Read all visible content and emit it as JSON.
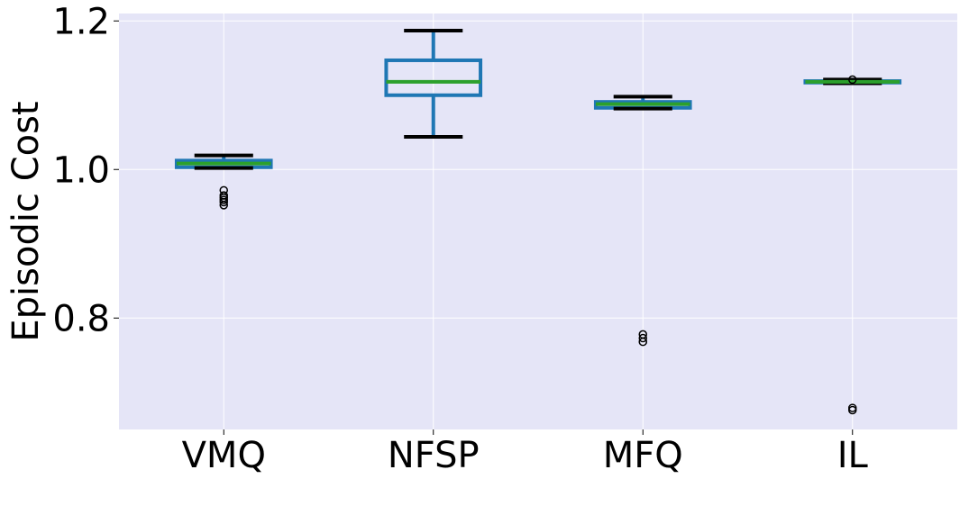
{
  "chart_data": {
    "type": "box",
    "title": "",
    "xlabel": "",
    "ylabel": "Episodic Cost",
    "ylim": [
      0.65,
      1.21
    ],
    "yticks": [
      0.8,
      1.0,
      1.2
    ],
    "ytick_labels": [
      "0.8",
      "1.0",
      "1.2"
    ],
    "categories": [
      "VMQ",
      "NFSP",
      "MFQ",
      "IL"
    ],
    "boxes": [
      {
        "label": "VMQ",
        "whisker_low": 1.002,
        "q1": 1.003,
        "median": 1.008,
        "q3": 1.012,
        "whisker_high": 1.019,
        "outliers": [
          0.952,
          0.956,
          0.959,
          0.962,
          0.965,
          0.972
        ]
      },
      {
        "label": "NFSP",
        "whisker_low": 1.044,
        "q1": 1.1,
        "median": 1.118,
        "q3": 1.147,
        "whisker_high": 1.187,
        "outliers": []
      },
      {
        "label": "MFQ",
        "whisker_low": 1.082,
        "q1": 1.083,
        "median": 1.088,
        "q3": 1.091,
        "whisker_high": 1.098,
        "outliers": [
          0.768,
          0.773,
          0.778
        ]
      },
      {
        "label": "IL",
        "whisker_low": 1.116,
        "q1": 1.117,
        "median": 1.118,
        "q3": 1.119,
        "whisker_high": 1.121,
        "outliers": [
          0.676,
          0.679,
          1.121
        ]
      }
    ],
    "grid": true,
    "colors": {
      "background": "#e5e5f7",
      "box": "#1f77b4",
      "median": "#2ca02c",
      "cap": "#000000",
      "grid": "#ffffff"
    }
  }
}
